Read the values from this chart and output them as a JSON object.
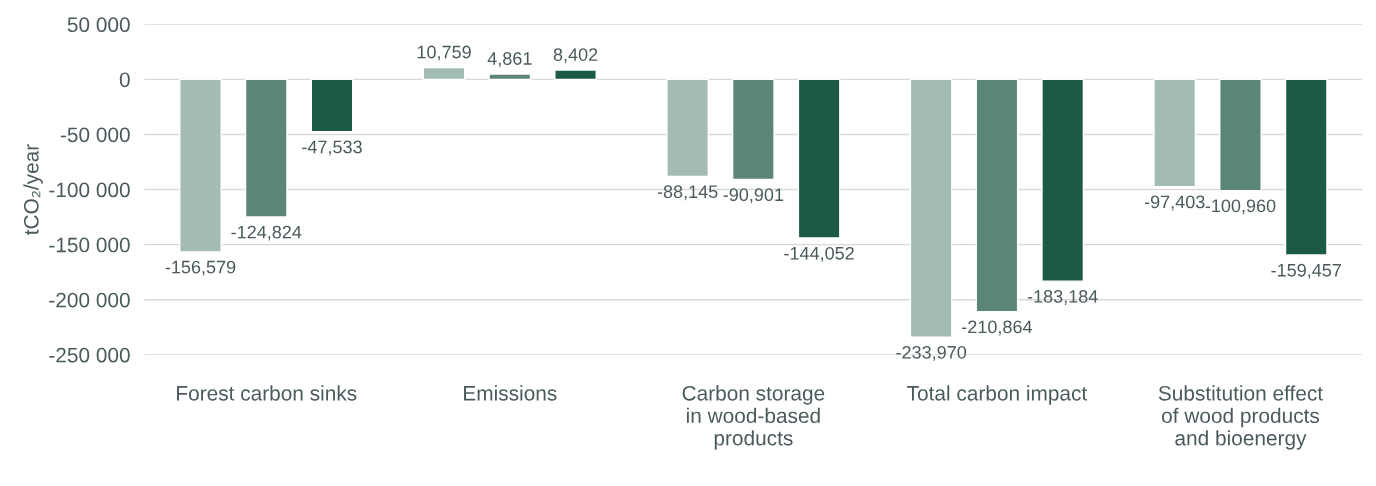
{
  "chart_data": {
    "type": "bar",
    "ylabel": "tCO₂/year",
    "categories": [
      "Forest carbon sinks",
      "Emissions",
      "Carbon storage\nin wood-based\nproducts",
      "Total carbon impact",
      "Substitution effect\nof wood products\nand bioenergy"
    ],
    "series": [
      {
        "color": "#a3bcb1",
        "values": [
          -156579,
          10759,
          -88145,
          -233970,
          -97403
        ],
        "value_labels": [
          "-156,579",
          "10,759",
          "-88,145",
          "-233,970",
          "-97,403"
        ]
      },
      {
        "color": "#5b8676",
        "values": [
          -124824,
          4861,
          -90901,
          -210864,
          -100960
        ],
        "value_labels": [
          "-124,824",
          "4,861",
          "-90,901",
          "-210,864",
          "-100,960"
        ]
      },
      {
        "color": "#1c5947",
        "values": [
          -47533,
          8402,
          -144052,
          -183184,
          -159457
        ],
        "value_labels": [
          "-47,533",
          "8,402",
          "-144,052",
          "-183,184",
          "-159,457"
        ]
      }
    ],
    "ylim": [
      -250000,
      50000
    ],
    "yticks": [
      {
        "value": 50000,
        "label": "50 000"
      },
      0,
      {
        "value": -50000,
        "label": "-50 000"
      },
      {
        "value": -100000,
        "label": "-100 000"
      },
      {
        "value": -150000,
        "label": "-150 000"
      },
      {
        "value": -200000,
        "label": "-200 000"
      },
      {
        "value": -250000,
        "label": "-250 000"
      }
    ],
    "grid": "y",
    "legend": false
  }
}
